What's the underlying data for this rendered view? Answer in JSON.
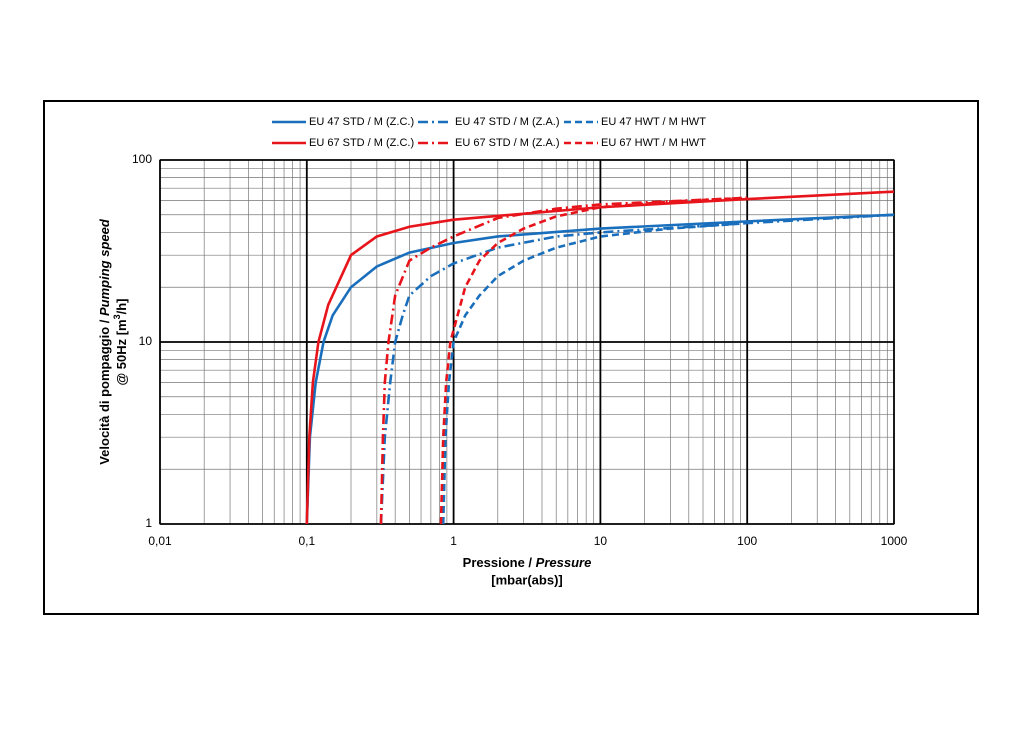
{
  "chart_data": {
    "type": "line",
    "log_x": true,
    "log_y": true,
    "grid": true,
    "minor_grid": true,
    "xlim": [
      0.01,
      1000
    ],
    "xticks": [
      {
        "value": 0.01,
        "label": "0,01"
      },
      {
        "value": 0.1,
        "label": "0,1"
      },
      1,
      10,
      100,
      1000
    ],
    "ylim": [
      1,
      100
    ],
    "yticks": [
      1,
      10,
      100
    ],
    "xlabel": {
      "line1": "Pressione / ",
      "line1_italic": "Pressure",
      "line2": "[mbar(abs)]"
    },
    "ylabel": {
      "line1": "Velocità di pompaggio / ",
      "line1_italic": "Pumping speed",
      "line2": "@ 50Hz [m",
      "line2_sup": "3",
      "line2_end": "/h]"
    },
    "legend": "top",
    "series": [
      {
        "name": "EU 47 STD / M (Z.C.)",
        "color": "#1a6fbd",
        "dash": "solid",
        "x": [
          0.1,
          0.105,
          0.115,
          0.13,
          0.15,
          0.2,
          0.3,
          0.5,
          1,
          2,
          10,
          100,
          1000
        ],
        "values": [
          1,
          3,
          6,
          10,
          14,
          20,
          26,
          31,
          35,
          38,
          42,
          46,
          50
        ]
      },
      {
        "name": "EU 47 STD / M (Z.A.)",
        "color": "#1a6fbd",
        "dash": "dashdot",
        "x": [
          0.32,
          0.34,
          0.37,
          0.4,
          0.45,
          0.5,
          0.7,
          1,
          2,
          5,
          10,
          100,
          1000
        ],
        "values": [
          1,
          3,
          6,
          10,
          14,
          18,
          23,
          27,
          33,
          38,
          40,
          45,
          50
        ]
      },
      {
        "name": "EU 47 HWT / M HWT",
        "color": "#1a6fbd",
        "dash": "dashed",
        "x": [
          0.85,
          0.88,
          0.93,
          1,
          1.2,
          1.5,
          2,
          3,
          5,
          10,
          30,
          100
        ],
        "values": [
          1,
          3,
          6,
          10,
          14,
          18,
          23,
          28,
          33,
          38,
          42,
          45
        ]
      },
      {
        "name": "EU 67 STD / M (Z.C.)",
        "color": "#e8141b",
        "dash": "solid",
        "x": [
          0.1,
          0.104,
          0.11,
          0.12,
          0.14,
          0.2,
          0.3,
          0.5,
          1,
          10,
          100,
          1000
        ],
        "values": [
          1,
          3,
          6,
          10,
          16,
          30,
          38,
          43,
          47,
          55,
          61,
          67
        ]
      },
      {
        "name": "EU 67 STD / M (Z.A.)",
        "color": "#e8141b",
        "dash": "dashdot",
        "x": [
          0.32,
          0.33,
          0.34,
          0.36,
          0.4,
          0.5,
          0.7,
          1,
          2,
          5,
          10,
          100
        ],
        "values": [
          1,
          3,
          6,
          10,
          18,
          28,
          33,
          38,
          48,
          54,
          57,
          62
        ]
      },
      {
        "name": "EU 67 HWT / M HWT",
        "color": "#e8141b",
        "dash": "dashed",
        "x": [
          0.82,
          0.85,
          0.89,
          0.95,
          1.2,
          1.5,
          2,
          3,
          5,
          10,
          30,
          100
        ],
        "values": [
          1,
          3,
          6,
          10,
          20,
          28,
          35,
          42,
          49,
          55,
          59,
          62
        ]
      }
    ]
  }
}
